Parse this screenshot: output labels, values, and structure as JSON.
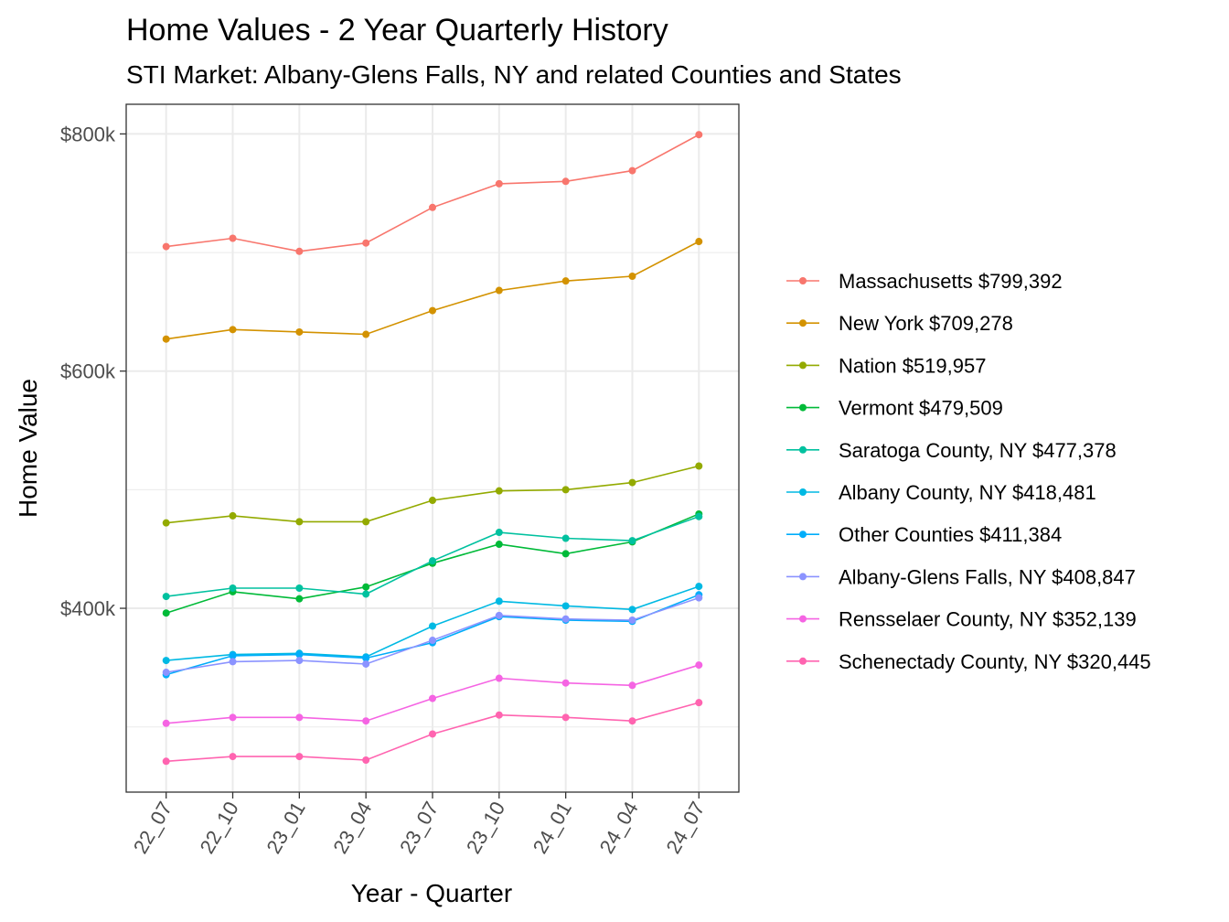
{
  "chart_data": {
    "type": "line",
    "title": "Home Values - 2 Year Quarterly History",
    "subtitle": "STI Market: Albany-Glens Falls, NY and related Counties and States",
    "xlabel": "Year - Quarter",
    "ylabel": "Home Value",
    "categories": [
      "22_07",
      "22_10",
      "23_01",
      "23_04",
      "23_07",
      "23_10",
      "24_01",
      "24_04",
      "24_07"
    ],
    "ylim": [
      245000,
      825000
    ],
    "yticks": [
      {
        "value": 400000,
        "label": "$400k"
      },
      {
        "value": 600000,
        "label": "$600k"
      },
      {
        "value": 800000,
        "label": "$800k"
      }
    ],
    "grid": true,
    "legend_position": "right",
    "series": [
      {
        "name": "Massachusetts $799,392",
        "color": "#F8766D",
        "values": [
          705000,
          712000,
          701000,
          708000,
          738000,
          758000,
          760000,
          769000,
          799392
        ]
      },
      {
        "name": "New York $709,278",
        "color": "#D39200",
        "values": [
          627000,
          635000,
          633000,
          631000,
          651000,
          668000,
          676000,
          680000,
          709278
        ]
      },
      {
        "name": "Nation $519,957",
        "color": "#93AA00",
        "values": [
          472000,
          478000,
          473000,
          473000,
          491000,
          499000,
          500000,
          506000,
          519957
        ]
      },
      {
        "name": "Vermont $479,509",
        "color": "#00BA38",
        "values": [
          396000,
          414000,
          408000,
          418000,
          438000,
          454000,
          446000,
          456000,
          479509
        ]
      },
      {
        "name": "Saratoga County, NY $477,378",
        "color": "#00C19F",
        "values": [
          410000,
          417000,
          417000,
          412000,
          440000,
          464000,
          459000,
          457000,
          477378
        ]
      },
      {
        "name": "Albany County, NY $418,481",
        "color": "#00B9E3",
        "values": [
          356000,
          361000,
          362000,
          359000,
          385000,
          406000,
          402000,
          399000,
          418481
        ]
      },
      {
        "name": "Other Counties $411,384",
        "color": "#00ADFA",
        "values": [
          344000,
          360000,
          361000,
          358000,
          371000,
          393000,
          390000,
          389000,
          411384
        ]
      },
      {
        "name": "Albany-Glens Falls, NY $408,847",
        "color": "#8B93FF",
        "values": [
          346000,
          355000,
          356000,
          353000,
          373000,
          394000,
          391000,
          390000,
          408847
        ]
      },
      {
        "name": "Rensselaer County, NY $352,139",
        "color": "#F564E3",
        "values": [
          303000,
          308000,
          308000,
          305000,
          324000,
          341000,
          337000,
          335000,
          352139
        ]
      },
      {
        "name": "Schenectady County, NY $320,445",
        "color": "#FF64B0",
        "values": [
          271000,
          275000,
          275000,
          272000,
          294000,
          310000,
          308000,
          305000,
          320445
        ]
      }
    ]
  }
}
